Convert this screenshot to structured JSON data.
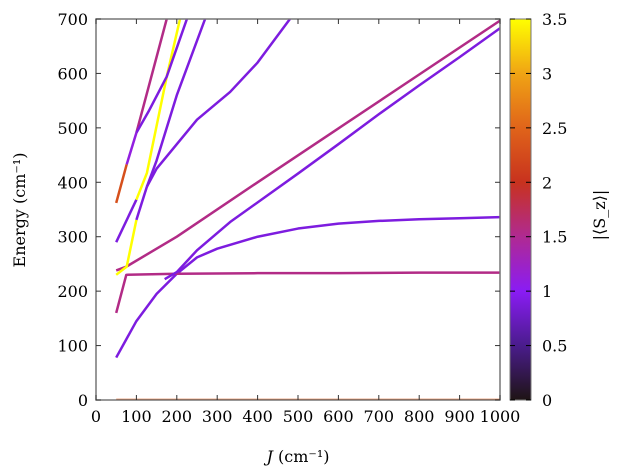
{
  "chart_data": {
    "type": "line",
    "xlabel": "J (cm⁻¹)",
    "xlabel_italic": "J",
    "xlabel_unit": "(cm⁻¹)",
    "ylabel": "Energy (cm⁻¹)",
    "colorbar_label": "|⟨S_z⟩|",
    "xlim": [
      0,
      1000
    ],
    "ylim": [
      0,
      700
    ],
    "xticks": [
      0,
      100,
      200,
      300,
      400,
      500,
      600,
      700,
      800,
      900,
      1000
    ],
    "yticks": [
      0,
      100,
      200,
      300,
      400,
      500,
      600,
      700
    ],
    "colorbar_ticks": [
      "0",
      "0.5",
      "1",
      "1.5",
      "2",
      "2.5",
      "3",
      "3.5"
    ],
    "colorbar_range": [
      0,
      3.5
    ],
    "colormap": [
      "#1e1414",
      "#4a1c8c",
      "#8a1cf4",
      "#b02a92",
      "#c8321e",
      "#e0641a",
      "#f0a414",
      "#ffff00"
    ],
    "grid": false,
    "series": [
      {
        "sz": 2.4,
        "x": [
          50,
          1000
        ],
        "y": [
          0,
          0
        ]
      },
      {
        "sz": 0.9,
        "x": [
          50,
          100,
          150,
          200,
          250,
          300,
          400,
          500,
          600,
          700,
          800,
          900,
          1000
        ],
        "y": [
          78,
          145,
          195,
          232,
          262,
          278,
          300,
          315,
          324,
          329,
          332,
          334,
          336
        ]
      },
      {
        "sz": 1.55,
        "x": [
          50,
          75,
          200,
          400,
          600,
          800,
          1000
        ],
        "y": [
          160,
          230,
          232,
          233,
          233,
          234,
          234
        ]
      },
      {
        "sz": 1.55,
        "x": [
          50,
          75,
          200,
          400,
          600,
          800,
          1000
        ],
        "y": [
          238,
          245,
          300,
          400,
          499,
          598,
          697
        ]
      },
      {
        "sz": 0.9,
        "x": [
          170,
          200,
          250,
          332,
          500,
          600,
          700,
          800,
          900,
          1000
        ],
        "y": [
          222,
          235,
          275,
          327,
          416,
          470,
          525,
          578,
          630,
          683
        ]
      },
      {
        "sz": 3.5,
        "x": [
          50,
          76,
          100
        ],
        "y": [
          230,
          245,
          331
        ]
      },
      {
        "sz": 0.9,
        "x": [
          100,
          126
        ],
        "y": [
          331,
          392
        ]
      },
      {
        "sz": 0.9,
        "x": [
          126,
          150,
          200,
          250,
          332,
          400,
          480
        ],
        "y": [
          392,
          425,
          470,
          515,
          566,
          620,
          700
        ]
      },
      {
        "sz": 0.9,
        "x": [
          126,
          150,
          200,
          270
        ],
        "y": [
          392,
          440,
          560,
          700
        ]
      },
      {
        "sz": 0.9,
        "x": [
          50,
          100
        ],
        "y": [
          290,
          368
        ]
      },
      {
        "sz": 3.5,
        "x": [
          100,
          126,
          175,
          208
        ],
        "y": [
          368,
          417,
          594,
          700
        ]
      },
      {
        "sz": 2.3,
        "x": [
          50,
          76
        ],
        "y": [
          362,
          433
        ]
      },
      {
        "sz": 1.1,
        "x": [
          76,
          100
        ],
        "y": [
          433,
          491
        ]
      },
      {
        "sz": 1.55,
        "x": [
          100,
          175
        ],
        "y": [
          491,
          700
        ]
      },
      {
        "sz": 0.9,
        "x": [
          100,
          130,
          175,
          225
        ],
        "y": [
          491,
          530,
          594,
          700
        ]
      }
    ]
  }
}
